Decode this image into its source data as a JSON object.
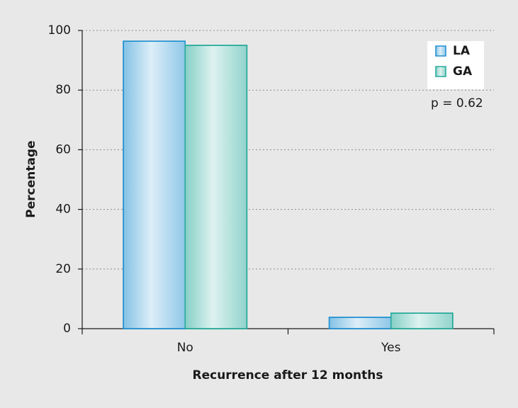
{
  "chart_data": {
    "type": "bar",
    "x_label": "Recurrence after 12 months",
    "y_label": "Percentage",
    "categories": [
      "No",
      "Yes"
    ],
    "series": [
      {
        "name": "LA",
        "color": "#1e8fd0",
        "values": [
          96.4,
          3.8
        ]
      },
      {
        "name": "GA",
        "color": "#22a898",
        "values": [
          95.0,
          5.2
        ]
      }
    ],
    "ylim": [
      0,
      100
    ],
    "yticks": [
      0,
      20,
      40,
      60,
      80,
      100
    ],
    "grid": true,
    "legend": "top-right",
    "annotation": "p = 0.62"
  }
}
